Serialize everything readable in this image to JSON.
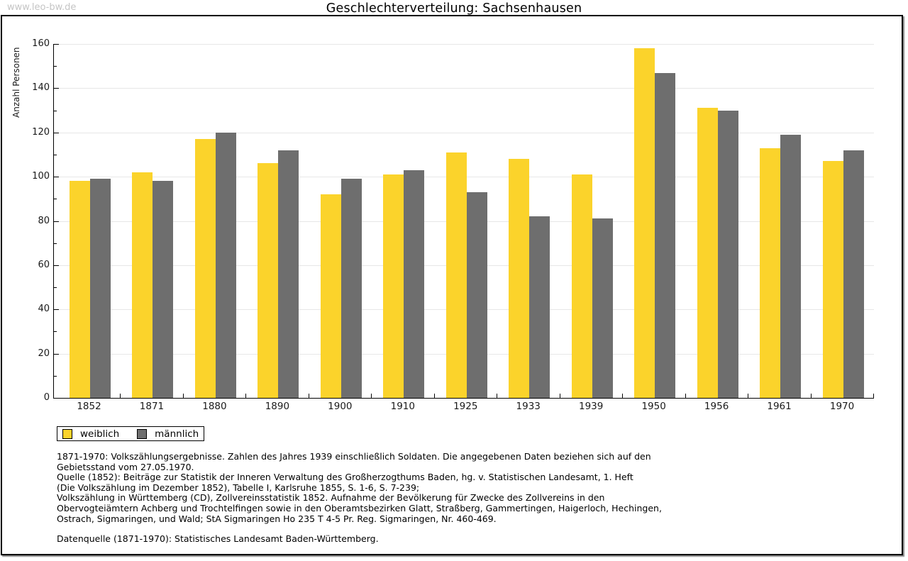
{
  "watermark": "www.leo-bw.de",
  "title": "Geschlechterverteilung: Sachsenhausen",
  "chart_data": {
    "type": "bar",
    "title": "Geschlechterverteilung: Sachsenhausen",
    "xlabel": "",
    "ylabel": "Anzahl Personen",
    "ylim": [
      0,
      160
    ],
    "ytick_step": 20,
    "ytick_minor_step": 10,
    "grid": true,
    "legend_position": "bottom-left",
    "categories": [
      "1852",
      "1871",
      "1880",
      "1890",
      "1900",
      "1910",
      "1925",
      "1933",
      "1939",
      "1950",
      "1956",
      "1961",
      "1970"
    ],
    "series": [
      {
        "name": "weiblich",
        "color": "#FBD32B",
        "values": [
          98,
          102,
          117,
          106,
          92,
          101,
          111,
          108,
          101,
          158,
          131,
          113,
          107
        ]
      },
      {
        "name": "männlich",
        "color": "#6E6E6E",
        "values": [
          99,
          98,
          120,
          112,
          99,
          103,
          93,
          82,
          81,
          147,
          130,
          119,
          112
        ]
      }
    ]
  },
  "footnote_lines": [
    "1871-1970: Volkszählungsergebnisse. Zahlen des Jahres 1939 einschließlich Soldaten. Die angegebenen Daten beziehen sich auf den",
    "Gebietsstand vom 27.05.1970.",
    "Quelle (1852): Beiträge zur Statistik der Inneren Verwaltung des Großherzogthums Baden, hg. v. Statistischen Landesamt, 1. Heft",
    "(Die Volkszählung im Dezember 1852), Tabelle I, Karlsruhe 1855, S. 1-6, S. 7-239;",
    "Volkszählung in Württemberg (CD), Zollvereinsstatistik 1852. Aufnahme der Bevölkerung für Zwecke des Zollvereins in den",
    "Obervogteiämtern Achberg und Trochtelfingen sowie in den Oberamtsbezirken Glatt, Straßberg, Gammertingen, Haigerloch, Hechingen,",
    "Ostrach, Sigmaringen, und Wald; StA Sigmaringen Ho 235 T 4-5 Pr. Reg. Sigmaringen, Nr. 460-469."
  ],
  "datasource": "Datenquelle (1871-1970): Statistisches Landesamt Baden-Württemberg."
}
